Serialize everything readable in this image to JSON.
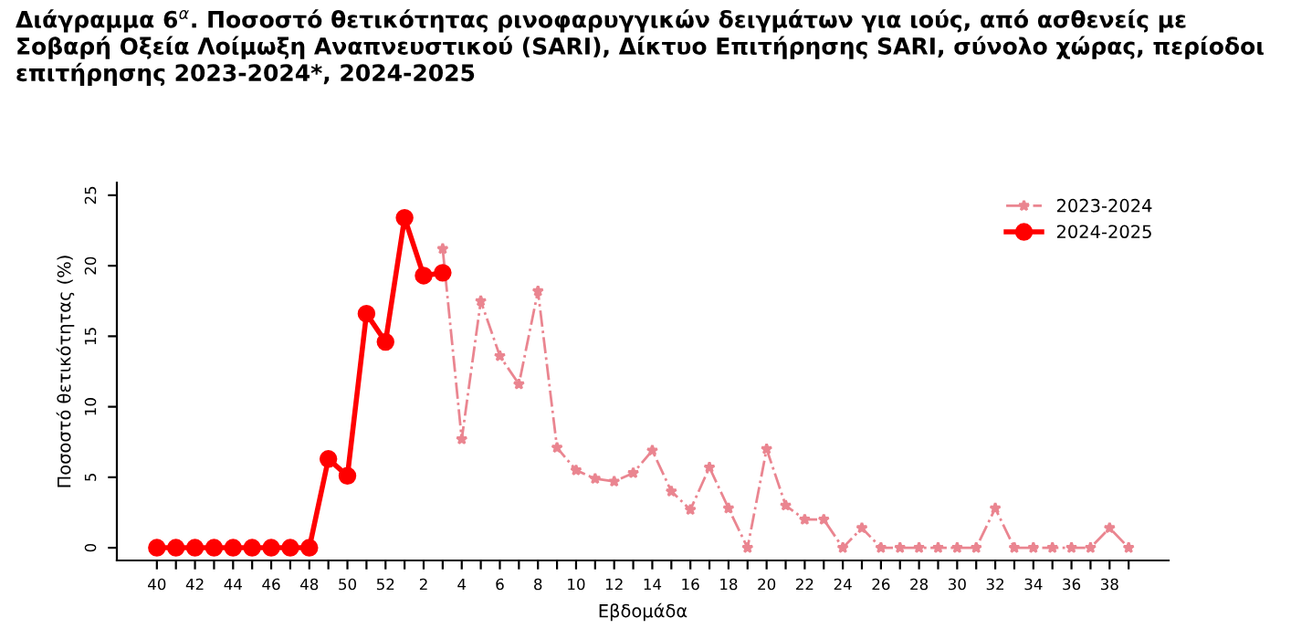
{
  "chart_data": {
    "type": "line",
    "title": "Διάγραμμα 6$^{α}$. Ποσοστό θετικότητας ρινοφαρυγγικών δειγμάτων για ιούς, από ασθενείς με Σοβαρή Οξεία Λοίμωξη Αναπνευστικού (SARI), Δίκτυο Επιτήρησης SARI, σύνολο χώρας, περίοδοι επιτήρησης 2023-2024*, 2024-2025",
    "xlabel": "Εβδομάδα",
    "ylabel": "Ποσοστό θετικότητας (%)",
    "categories": [
      "40",
      null,
      "42",
      null,
      "44",
      null,
      "46",
      null,
      "48",
      null,
      "50",
      null,
      "52",
      null,
      "2",
      null,
      "4",
      null,
      "6",
      null,
      "8",
      null,
      "10",
      null,
      "12",
      null,
      "14",
      null,
      "16",
      null,
      "18",
      null,
      "20",
      null,
      "22",
      null,
      "24",
      null,
      "26",
      null,
      "28",
      null,
      "30",
      null,
      "32",
      null,
      "34",
      null,
      "36",
      null,
      "38",
      null
    ],
    "series": [
      {
        "name": "2023-2024",
        "color": "#ea8590",
        "marker": "star",
        "line_style": "dashdot",
        "values": [
          null,
          null,
          null,
          null,
          null,
          null,
          null,
          null,
          null,
          null,
          null,
          null,
          null,
          null,
          null,
          21.2,
          7.7,
          17.5,
          13.6,
          11.6,
          18.2,
          7.1,
          5.5,
          4.9,
          4.7,
          5.3,
          6.9,
          4.0,
          2.7,
          5.7,
          2.8,
          0,
          7.0,
          3.0,
          2.0,
          2.0,
          0,
          1.4,
          0,
          0,
          0,
          0,
          0,
          0,
          2.8,
          0,
          0,
          0,
          0,
          0,
          1.4,
          0
        ]
      },
      {
        "name": "2024-2025",
        "color": "#ff0000",
        "marker": "circle",
        "line_style": "solid",
        "values": [
          0,
          0,
          0,
          0,
          0,
          0,
          0,
          0,
          0,
          6.3,
          5.1,
          16.6,
          14.6,
          23.4,
          19.3,
          19.5,
          null,
          null,
          null,
          null,
          null,
          null,
          null,
          null,
          null,
          null,
          null,
          null,
          null,
          null,
          null,
          null,
          null,
          null,
          null,
          null,
          null,
          null,
          null,
          null,
          null,
          null,
          null,
          null,
          null,
          null,
          null,
          null,
          null,
          null,
          null,
          null
        ]
      }
    ],
    "ylim": [
      -0.9,
      25.9
    ],
    "yticks": [
      0,
      5,
      10,
      15,
      20,
      25
    ],
    "grid": false,
    "legend": "top right"
  }
}
